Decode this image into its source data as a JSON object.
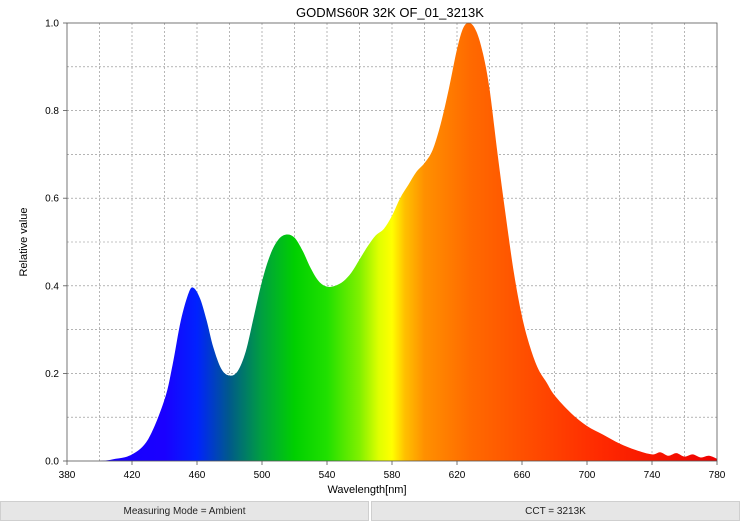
{
  "chart_data": {
    "type": "area",
    "title": "GODMS60R 32K OF_01_3213K",
    "xlabel": "Wavelength[nm]",
    "ylabel": "Relative value",
    "xlim": [
      380,
      780
    ],
    "ylim": [
      0,
      1.0
    ],
    "xticks": [
      "380",
      "420",
      "460",
      "500",
      "540",
      "580",
      "620",
      "660",
      "700",
      "740",
      "780"
    ],
    "yticks": [
      "0.0",
      "0.2",
      "0.4",
      "0.6",
      "0.8",
      "1.0"
    ],
    "grid": true,
    "fill": "visible-spectrum-gradient",
    "series": [
      {
        "x": [
          380,
          400,
          410,
          420,
          430,
          440,
          445,
          450,
          455,
          458,
          462,
          466,
          470,
          475,
          480,
          485,
          490,
          495,
          500,
          505,
          510,
          515,
          520,
          525,
          530,
          535,
          540,
          545,
          550,
          555,
          560,
          565,
          570,
          575,
          580,
          585,
          590,
          595,
          600,
          605,
          610,
          615,
          620,
          624,
          628,
          632,
          636,
          640,
          645,
          650,
          655,
          660,
          665,
          670,
          675,
          680,
          690,
          700,
          710,
          720,
          730,
          740,
          745,
          750,
          755,
          760,
          765,
          770,
          775,
          780
        ],
        "y": [
          0.0,
          0.0,
          0.005,
          0.015,
          0.05,
          0.14,
          0.22,
          0.32,
          0.385,
          0.395,
          0.37,
          0.32,
          0.26,
          0.21,
          0.195,
          0.205,
          0.25,
          0.33,
          0.41,
          0.47,
          0.505,
          0.517,
          0.51,
          0.48,
          0.44,
          0.41,
          0.398,
          0.4,
          0.41,
          0.43,
          0.46,
          0.49,
          0.515,
          0.53,
          0.56,
          0.6,
          0.63,
          0.66,
          0.68,
          0.71,
          0.77,
          0.85,
          0.94,
          0.99,
          1.0,
          0.98,
          0.93,
          0.85,
          0.7,
          0.56,
          0.43,
          0.33,
          0.26,
          0.21,
          0.18,
          0.15,
          0.11,
          0.08,
          0.06,
          0.04,
          0.025,
          0.015,
          0.02,
          0.012,
          0.018,
          0.01,
          0.015,
          0.008,
          0.012,
          0.005
        ]
      }
    ]
  },
  "footer": {
    "measuring_mode": "Measuring Mode = Ambient",
    "cct": "CCT = 3213K"
  }
}
